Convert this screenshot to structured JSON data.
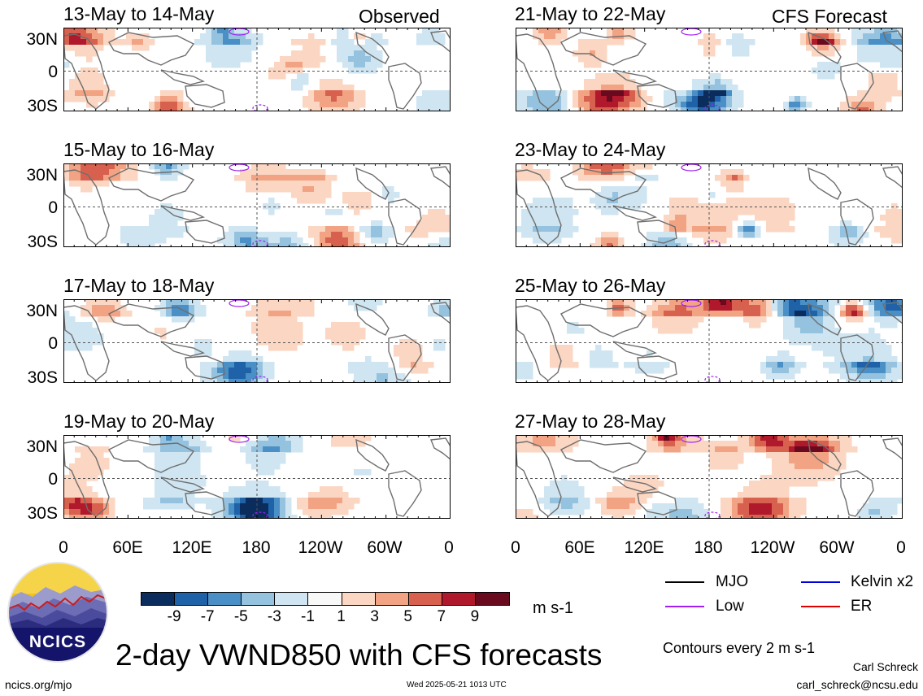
{
  "header": {
    "left_label": "Observed",
    "right_label": "CFS Forecast"
  },
  "panels": {
    "left": [
      {
        "title": "13-May to 14-May"
      },
      {
        "title": "15-May to 16-May"
      },
      {
        "title": "17-May to 18-May"
      },
      {
        "title": "19-May to 20-May"
      }
    ],
    "right": [
      {
        "title": "21-May to 22-May"
      },
      {
        "title": "23-May to 24-May"
      },
      {
        "title": "25-May to 26-May"
      },
      {
        "title": "27-May to 28-May"
      }
    ]
  },
  "lat_labels": [
    "30N",
    "0",
    "30S"
  ],
  "lon_labels": [
    "0",
    "60E",
    "120E",
    "180",
    "120W",
    "60W",
    "0"
  ],
  "colorbar": {
    "colors": [
      "#0b2d5e",
      "#1f62a8",
      "#4a8fc5",
      "#95c3df",
      "#cfe5f1",
      "#f8f8f8",
      "#fbd6c2",
      "#f2a383",
      "#d8604f",
      "#b0192c",
      "#6a0a1f"
    ],
    "labels": [
      "-9",
      "-7",
      "-5",
      "-3",
      "-1",
      "1",
      "3",
      "5",
      "7",
      "9"
    ],
    "units": "m s-1"
  },
  "legend": {
    "items": [
      {
        "label": "MJO",
        "color": "#000000"
      },
      {
        "label": "Low",
        "color": "#a020f0"
      },
      {
        "label": "Kelvin x2",
        "color": "#0000dd"
      },
      {
        "label": "ER",
        "color": "#dd0000"
      }
    ],
    "contours_note": "Contours every 2 m s-1"
  },
  "logo": {
    "text": "NCICS"
  },
  "main_title": "2-day VWND850 with CFS forecasts",
  "footer": {
    "url": "ncics.org/mjo",
    "timestamp": "Wed 2025-05-21 1013 UTC",
    "author": "Carl Schreck",
    "email": "carl_schreck@ncsu.edu"
  }
}
